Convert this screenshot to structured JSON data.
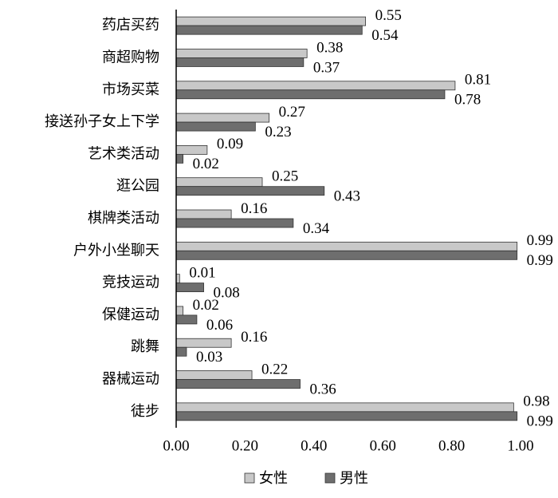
{
  "chart_data": {
    "type": "bar",
    "orientation": "horizontal",
    "categories": [
      "药店买药",
      "商超购物",
      "市场买菜",
      "接送孙子女上下学",
      "艺术类活动",
      "逛公园",
      "棋牌类活动",
      "户外小坐聊天",
      "竞技运动",
      "保健运动",
      "跳舞",
      "器械运动",
      "徒步"
    ],
    "series": [
      {
        "name": "女性",
        "color": "#c8c8c8",
        "values": [
          0.55,
          0.38,
          0.81,
          0.27,
          0.09,
          0.25,
          0.16,
          0.99,
          0.01,
          0.02,
          0.16,
          0.22,
          0.98
        ]
      },
      {
        "name": "男性",
        "color": "#6e6e6e",
        "values": [
          0.54,
          0.37,
          0.78,
          0.23,
          0.02,
          0.43,
          0.34,
          0.99,
          0.08,
          0.06,
          0.03,
          0.36,
          0.99
        ]
      }
    ],
    "xlim": [
      0,
      1
    ],
    "xticks": [
      {
        "value": 0,
        "label": "0.00"
      },
      {
        "value": 0.2,
        "label": "0.20"
      },
      {
        "value": 0.4,
        "label": "0.40"
      },
      {
        "value": 0.6,
        "label": "0.60"
      },
      {
        "value": 0.8,
        "label": "0.80"
      },
      {
        "value": 1,
        "label": "1.00"
      }
    ],
    "grid": false,
    "legend": "bottom"
  }
}
